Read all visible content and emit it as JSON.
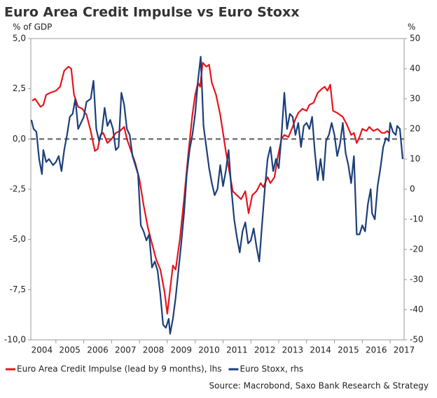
{
  "chart_data": {
    "type": "line",
    "title": "Euro Area Credit Impulse vs Euro Stoxx",
    "y_label": "% of GDP",
    "y2_label": "%",
    "source": "Source: Macrobond, Saxo Bank Research & Strategy",
    "xlim": [
      2004.1,
      2017.5
    ],
    "xticks": [
      2004,
      2005,
      2006,
      2007,
      2008,
      2009,
      2010,
      2011,
      2012,
      2013,
      2014,
      2015,
      2016,
      2017
    ],
    "ylim": [
      -10,
      5
    ],
    "yticks": [
      {
        "value": -10,
        "label": "-10,0"
      },
      {
        "value": -7.5,
        "label": "-7,5"
      },
      {
        "value": -5,
        "label": "-5,0"
      },
      {
        "value": -2.5,
        "label": "-2,5"
      },
      {
        "value": 0,
        "label": "0,0"
      },
      {
        "value": 2.5,
        "label": "2,5"
      },
      {
        "value": 5,
        "label": "5,0"
      }
    ],
    "y2lim": [
      -50,
      50
    ],
    "y2ticks": [
      -50,
      -40,
      -30,
      -20,
      -10,
      0,
      10,
      20,
      30,
      40,
      50
    ],
    "hline": 0,
    "series": [
      {
        "name": "Euro Area Credit Impulse (lead by 9 months), lhs",
        "color": "#e8141c",
        "axis": "y",
        "x": [
          2004.15,
          2004.25,
          2004.45,
          2004.55,
          2004.65,
          2004.8,
          2005.0,
          2005.15,
          2005.3,
          2005.45,
          2005.55,
          2005.65,
          2005.8,
          2005.95,
          2006.1,
          2006.25,
          2006.4,
          2006.5,
          2006.6,
          2006.7,
          2006.85,
          2007.0,
          2007.15,
          2007.3,
          2007.45,
          2007.55,
          2007.7,
          2007.85,
          2008.0,
          2008.15,
          2008.3,
          2008.45,
          2008.6,
          2008.75,
          2008.9,
          2009.0,
          2009.1,
          2009.2,
          2009.3,
          2009.45,
          2009.6,
          2009.75,
          2009.9,
          2010.0,
          2010.1,
          2010.18,
          2010.27,
          2010.4,
          2010.5,
          2010.6,
          2010.75,
          2010.9,
          2011.0,
          2011.1,
          2011.25,
          2011.35,
          2011.5,
          2011.65,
          2011.8,
          2011.92,
          2012.05,
          2012.2,
          2012.35,
          2012.45,
          2012.6,
          2012.7,
          2012.85,
          2012.95,
          2013.1,
          2013.2,
          2013.35,
          2013.5,
          2013.6,
          2013.7,
          2013.85,
          2014.0,
          2014.1,
          2014.25,
          2014.4,
          2014.55,
          2014.65,
          2014.75,
          2014.85,
          2014.95,
          2015.1,
          2015.3,
          2015.45,
          2015.6,
          2015.7,
          2015.8,
          2015.9,
          2016.0,
          2016.15,
          2016.25,
          2016.4,
          2016.55,
          2016.7,
          2016.8,
          2016.9,
          2016.95
        ],
        "values": [
          1.9,
          2.0,
          1.6,
          1.7,
          2.2,
          2.3,
          2.4,
          2.6,
          3.4,
          3.6,
          3.5,
          2.2,
          1.6,
          1.5,
          1.2,
          0.4,
          -0.6,
          -0.5,
          0.2,
          0.3,
          -0.2,
          0.0,
          0.3,
          0.4,
          0.6,
          0.0,
          -0.6,
          -1.2,
          -2.0,
          -3.3,
          -4.4,
          -5.2,
          -6.0,
          -6.5,
          -7.6,
          -8.7,
          -7.5,
          -6.3,
          -6.5,
          -5.0,
          -3.0,
          -0.8,
          1.2,
          2.2,
          2.8,
          2.6,
          3.8,
          3.6,
          3.7,
          2.8,
          2.2,
          1.2,
          0.3,
          -0.6,
          -1.8,
          -2.6,
          -2.8,
          -3.0,
          -2.6,
          -3.7,
          -2.8,
          -2.6,
          -2.2,
          -2.4,
          -1.9,
          -2.2,
          -1.9,
          -1.0,
          0.0,
          0.2,
          0.1,
          0.6,
          1.0,
          1.3,
          1.5,
          1.4,
          1.7,
          1.8,
          2.3,
          2.5,
          2.6,
          2.4,
          2.7,
          1.4,
          1.3,
          1.1,
          0.7,
          0.2,
          0.3,
          -0.2,
          0.1,
          0.5,
          0.4,
          0.6,
          0.4,
          0.5,
          0.3,
          0.3,
          0.4,
          0.3
        ]
      },
      {
        "name": "Euro Stoxx, rhs",
        "color": "#1b3f7a",
        "axis": "y2",
        "x": [
          2004.12,
          2004.2,
          2004.3,
          2004.4,
          2004.5,
          2004.55,
          2004.65,
          2004.75,
          2004.9,
          2005.0,
          2005.1,
          2005.2,
          2005.3,
          2005.4,
          2005.5,
          2005.6,
          2005.7,
          2005.8,
          2005.9,
          2006.0,
          2006.1,
          2006.25,
          2006.35,
          2006.45,
          2006.55,
          2006.65,
          2006.75,
          2006.85,
          2006.95,
          2007.05,
          2007.15,
          2007.25,
          2007.35,
          2007.45,
          2007.55,
          2007.65,
          2007.75,
          2007.85,
          2007.95,
          2008.05,
          2008.15,
          2008.25,
          2008.35,
          2008.45,
          2008.55,
          2008.65,
          2008.75,
          2008.85,
          2008.95,
          2009.05,
          2009.1,
          2009.2,
          2009.3,
          2009.4,
          2009.5,
          2009.6,
          2009.7,
          2009.8,
          2009.9,
          2010.0,
          2010.1,
          2010.2,
          2010.3,
          2010.4,
          2010.5,
          2010.6,
          2010.7,
          2010.8,
          2010.9,
          2011.0,
          2011.1,
          2011.2,
          2011.3,
          2011.4,
          2011.5,
          2011.6,
          2011.7,
          2011.8,
          2011.9,
          2012.0,
          2012.1,
          2012.2,
          2012.3,
          2012.4,
          2012.5,
          2012.6,
          2012.7,
          2012.8,
          2012.9,
          2013.0,
          2013.1,
          2013.2,
          2013.3,
          2013.4,
          2013.5,
          2013.6,
          2013.7,
          2013.8,
          2013.9,
          2014.0,
          2014.1,
          2014.2,
          2014.3,
          2014.4,
          2014.5,
          2014.6,
          2014.7,
          2014.8,
          2014.9,
          2015.0,
          2015.1,
          2015.2,
          2015.3,
          2015.4,
          2015.5,
          2015.6,
          2015.7,
          2015.8,
          2015.9,
          2016.0,
          2016.1,
          2016.2,
          2016.3,
          2016.35,
          2016.45,
          2016.55,
          2016.65,
          2016.75,
          2016.85,
          2016.95,
          2017.0,
          2017.1,
          2017.2,
          2017.25,
          2017.35,
          2017.45
        ],
        "values": [
          23,
          20,
          19,
          10,
          5,
          13,
          9,
          10,
          8,
          9,
          11,
          6,
          13,
          18,
          24,
          25,
          30,
          20,
          22,
          24,
          29,
          30,
          36,
          20,
          16,
          19,
          27,
          21,
          23,
          20,
          13,
          14,
          32,
          28,
          20,
          18,
          11,
          8,
          5,
          -12,
          -14,
          -17,
          -15,
          -26,
          -24,
          -27,
          -35,
          -45,
          -46,
          -43,
          -48,
          -43,
          -36,
          -27,
          -18,
          -8,
          5,
          13,
          18,
          25,
          36,
          44,
          21,
          14,
          7,
          2,
          -2,
          0,
          8,
          1,
          6,
          13,
          0,
          -10,
          -16,
          -21,
          -14,
          -11,
          -18,
          -17,
          -13,
          -19,
          -24,
          -12,
          0,
          10,
          14,
          6,
          10,
          7,
          18,
          32,
          20,
          25,
          24,
          18,
          22,
          14,
          21,
          22,
          20,
          24,
          12,
          3,
          10,
          3,
          16,
          18,
          22,
          18,
          11,
          15,
          22,
          12,
          8,
          2,
          11,
          -15,
          -15,
          -12,
          -14,
          -5,
          0,
          -8,
          -10,
          1,
          7,
          14,
          17,
          16,
          22,
          19,
          18,
          21,
          20,
          10
        ]
      }
    ]
  }
}
